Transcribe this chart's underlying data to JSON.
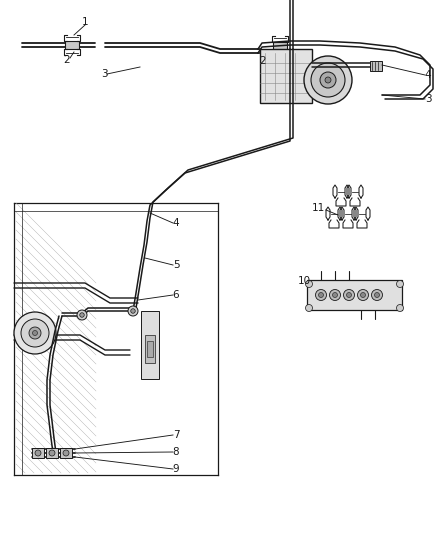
{
  "bg_color": "#ffffff",
  "line_color": "#1a1a1a",
  "gray_fill": "#d8d8d8",
  "dark_gray": "#888888",
  "fig_width": 4.38,
  "fig_height": 5.33,
  "dpi": 100
}
